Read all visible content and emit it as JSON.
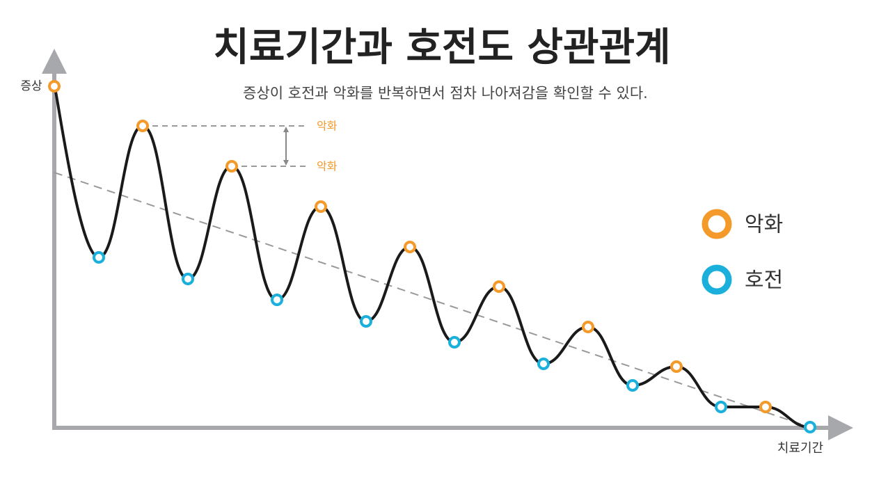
{
  "title": "치료기간과 호전도 상관관계",
  "subtitle": "증상이 호전과 악화를 반복하면서 점차 나아져감을 확인할 수 있다.",
  "y_axis_label": "증상",
  "x_axis_label": "치료기간",
  "annotations": [
    "악화",
    "악화"
  ],
  "legend": [
    "악화",
    "호전"
  ]
}
